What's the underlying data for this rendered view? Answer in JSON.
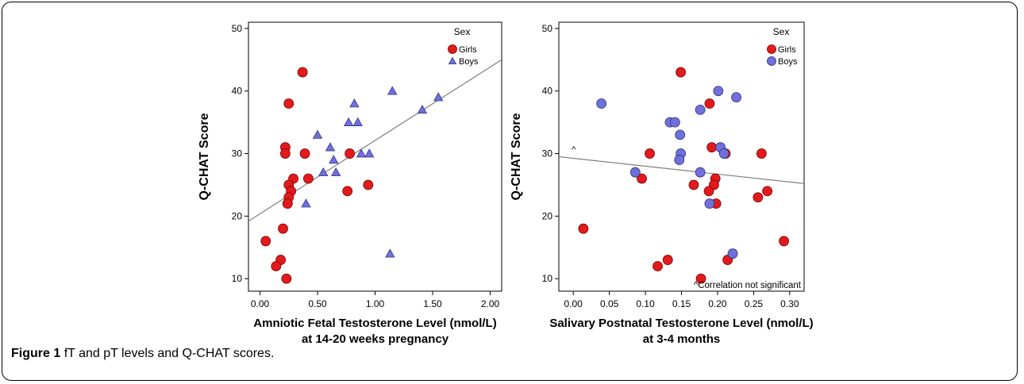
{
  "caption": {
    "label": "Figure 1",
    "text": "fT and pT levels and Q-CHAT scores."
  },
  "colors": {
    "girls": "#e31a1c",
    "boys": "#7070dc",
    "axis": "#000000",
    "regression": "#808080"
  },
  "chart_data": [
    {
      "type": "scatter",
      "title": "",
      "xlabel": "Amniotic Fetal Testosterone Level (nmol/L)",
      "xlabel2": "at 14-20 weeks pregnancy",
      "ylabel": "Q-CHAT Score",
      "xlim": [
        -0.1,
        2.1
      ],
      "ylim": [
        8,
        51
      ],
      "xticks": [
        0,
        0.5,
        1,
        1.5,
        2
      ],
      "xtick_labels": [
        "0.00",
        "0.50",
        "1.00",
        "1.50",
        "2.00"
      ],
      "yticks": [
        10,
        20,
        30,
        40,
        50
      ],
      "ytick_labels": [
        "10",
        "20",
        "30",
        "40",
        "50"
      ],
      "grid": false,
      "legend": {
        "title": "Sex",
        "position": "top-right"
      },
      "regression": {
        "x": [
          -0.1,
          2.1
        ],
        "y": [
          19.2,
          45.0
        ]
      },
      "series": [
        {
          "name": "Girls",
          "marker": "circle",
          "color": "#e31a1c",
          "x": [
            0.37,
            0.25,
            0.22,
            0.22,
            0.39,
            0.29,
            0.42,
            0.78,
            0.25,
            0.27,
            0.25,
            0.24,
            0.24,
            0.76,
            0.94,
            0.2,
            0.05,
            0.18,
            0.14,
            0.23
          ],
          "y": [
            43,
            38,
            31,
            30,
            30,
            26,
            26,
            30,
            25,
            24,
            23,
            22,
            22,
            24,
            25,
            18,
            16,
            13,
            12,
            10
          ]
        },
        {
          "name": "Boys",
          "marker": "triangle",
          "color": "#7070dc",
          "x": [
            1.15,
            0.82,
            0.77,
            0.85,
            1.55,
            1.41,
            0.5,
            0.61,
            0.64,
            0.55,
            0.66,
            0.88,
            0.95,
            0.4,
            1.13
          ],
          "y": [
            40,
            38,
            35,
            35,
            39,
            37,
            33,
            31,
            29,
            27,
            27,
            30,
            30,
            22,
            14
          ]
        }
      ]
    },
    {
      "type": "scatter",
      "title": "",
      "xlabel": "Salivary Postnatal Testosterone Level (nmol/L)",
      "xlabel2": "at 3-4 months",
      "ylabel": "Q-CHAT Score",
      "xlim": [
        -0.02,
        0.32
      ],
      "ylim": [
        8,
        51
      ],
      "xticks": [
        0,
        0.05,
        0.1,
        0.15,
        0.2,
        0.25,
        0.3
      ],
      "xtick_labels": [
        "0.00",
        "0.05",
        "0.10",
        "0.15",
        "0.20",
        "0.25",
        "0.30"
      ],
      "yticks": [
        10,
        20,
        30,
        40,
        50
      ],
      "ytick_labels": [
        "10",
        "20",
        "30",
        "40",
        "50"
      ],
      "grid": false,
      "legend": {
        "title": "Sex",
        "position": "top-right"
      },
      "annotations": [
        "^",
        "^Correlation not significant"
      ],
      "regression": {
        "x": [
          -0.02,
          0.32
        ],
        "y": [
          29.5,
          25.2
        ]
      },
      "series": [
        {
          "name": "Girls",
          "marker": "circle",
          "color": "#e31a1c",
          "x": [
            0.149,
            0.189,
            0.192,
            0.106,
            0.211,
            0.261,
            0.095,
            0.167,
            0.197,
            0.195,
            0.188,
            0.198,
            0.269,
            0.256,
            0.014,
            0.292,
            0.117,
            0.131,
            0.214,
            0.177
          ],
          "y": [
            43,
            38,
            31,
            30,
            30,
            30,
            26,
            25,
            26,
            25,
            24,
            22,
            24,
            23,
            18,
            16,
            12,
            13,
            13,
            10
          ]
        },
        {
          "name": "Boys",
          "marker": "circle",
          "color": "#7070dc",
          "x": [
            0.201,
            0.226,
            0.039,
            0.134,
            0.141,
            0.176,
            0.148,
            0.149,
            0.147,
            0.086,
            0.176,
            0.204,
            0.209,
            0.189,
            0.221
          ],
          "y": [
            40,
            39,
            38,
            35,
            35,
            37,
            33,
            30,
            29,
            27,
            27,
            31,
            30,
            22,
            14
          ]
        }
      ]
    }
  ]
}
